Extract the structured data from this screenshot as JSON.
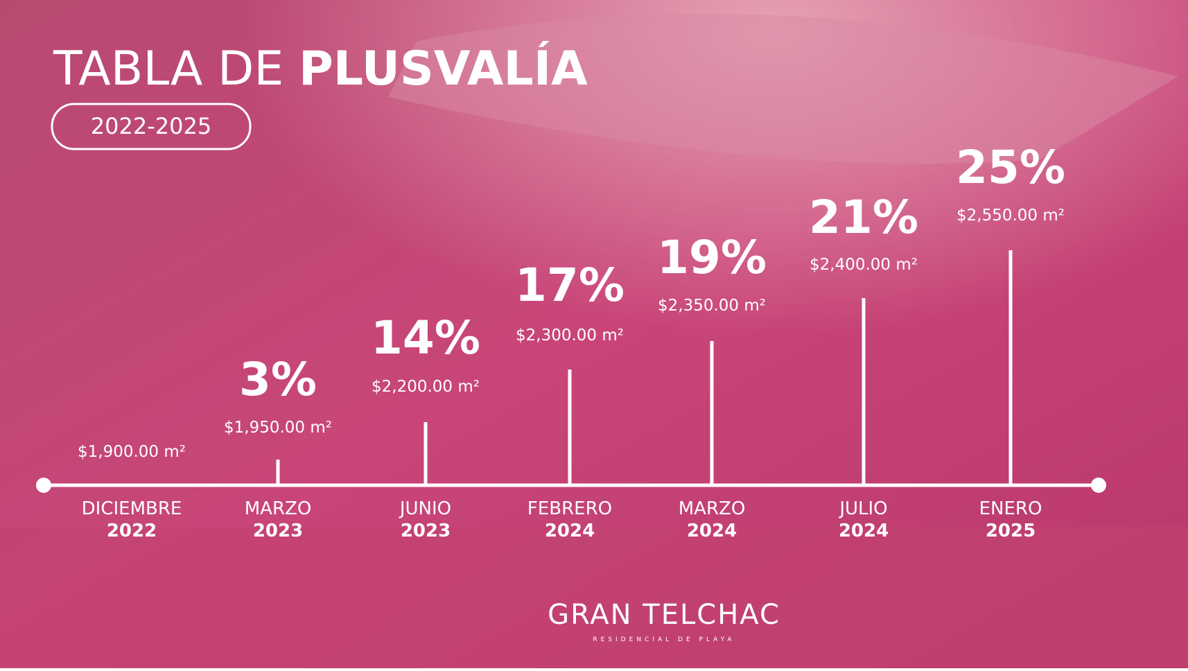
{
  "header": {
    "title_light": "TABLA DE",
    "title_bold": "PLUSVALÍA",
    "period": "2022-2025"
  },
  "timeline": [
    {
      "month": "DICIEMBRE",
      "year": "2022",
      "price": "$1,900.00 m²"
    },
    {
      "month": "MARZO",
      "year": "2023",
      "percent": "3%",
      "price": "$1,950.00 m²"
    },
    {
      "month": "JUNIO",
      "year": "2023",
      "percent": "14%",
      "price": "$2,200.00 m²"
    },
    {
      "month": "FEBRERO",
      "year": "2024",
      "percent": "17%",
      "price": "$2,300.00 m²"
    },
    {
      "month": "MARZO",
      "year": "2024",
      "percent": "19%",
      "price": "$2,350.00 m²"
    },
    {
      "month": "JULIO",
      "year": "2024",
      "percent": "21%",
      "price": "$2,400.00 m²"
    },
    {
      "month": "ENERO",
      "year": "2025",
      "percent": "25%",
      "price": "$2,550.00 m²"
    }
  ],
  "logo": {
    "name": "GRAN TELCHAC",
    "tagline": "RESIDENCIAL DE PLAYA"
  }
}
